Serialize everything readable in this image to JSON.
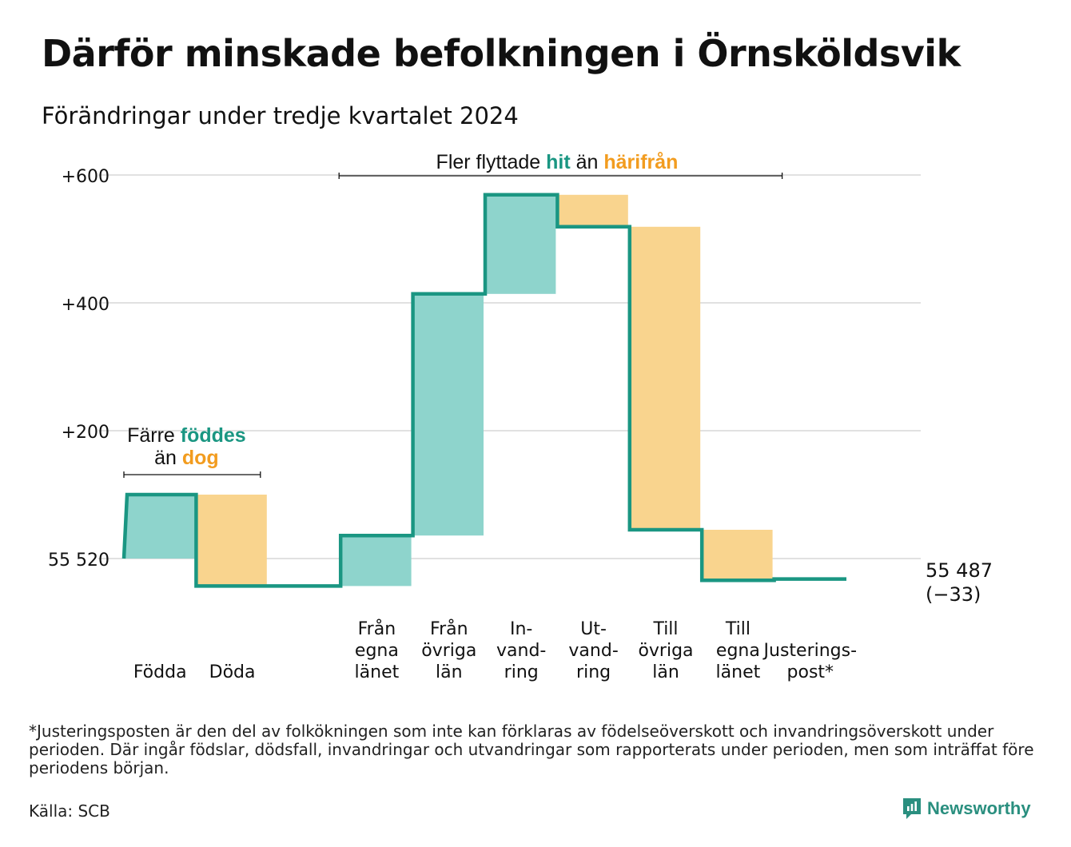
{
  "title": "Därför minskade befolkningen i Örnsköldsvik",
  "subtitle": "Förändringar under tredje kvartalet 2024",
  "colors": {
    "in": "#8ed4cc",
    "out": "#f9d48e",
    "line": "#1a9682",
    "in_text": "#1a9682",
    "out_text": "#f29c1f",
    "grid": "#e1e1e1"
  },
  "chart_data": {
    "type": "waterfall",
    "start_label": "55 520",
    "start_value": 55520,
    "y_ticks": [
      {
        "value": 600,
        "label": "+600"
      },
      {
        "value": 400,
        "label": "+400"
      },
      {
        "value": 200,
        "label": "+200"
      },
      {
        "value": 0,
        "label": "55 520"
      }
    ],
    "ylim": [
      -45,
      640
    ],
    "steps": [
      {
        "label": [
          "Födda"
        ],
        "change": 100,
        "kind": "in"
      },
      {
        "label": [
          "Döda"
        ],
        "change": -143,
        "kind": "out"
      },
      {
        "label": [],
        "change": 0,
        "kind": "none"
      },
      {
        "label": [
          "Från",
          "egna",
          "länet"
        ],
        "change": 79,
        "kind": "in"
      },
      {
        "label": [
          "Från",
          "övriga",
          "län"
        ],
        "change": 378,
        "kind": "in"
      },
      {
        "label": [
          "In-",
          "vand-",
          "ring"
        ],
        "change": 155,
        "kind": "in"
      },
      {
        "label": [
          "Ut-",
          "vand-",
          "ring"
        ],
        "change": -50,
        "kind": "out"
      },
      {
        "label": [
          "Till",
          "övriga",
          "län"
        ],
        "change": -474,
        "kind": "out"
      },
      {
        "label": [
          "Till",
          "egna",
          "länet"
        ],
        "change": -79,
        "kind": "out"
      },
      {
        "label": [
          "Justerings-",
          "post*"
        ],
        "change": 2,
        "kind": "adjust"
      }
    ],
    "end_label": "55 487",
    "end_change": "(−33)",
    "annotations": {
      "births": {
        "line1_prefix": "Färre ",
        "line1_highlight": "föddes",
        "line2_prefix": "än ",
        "line2_highlight": "dog"
      },
      "migration": {
        "prefix": "Fler flyttade ",
        "highlight_in": "hit",
        "middle": " än ",
        "highlight_out": "härifrån"
      }
    }
  },
  "footnote": "*Justeringsposten är den del av folkökningen som inte kan förklaras av födelseöverskott och invandringsöverskott under perioden. Där ingår födslar, dödsfall, invandringar och utvandringar som rapporterats under perioden, men som inträffat före periodens början.",
  "source": "Källa: SCB",
  "brand": {
    "name": "Newsworthy",
    "logo_icon": "newsworthy-logo-icon"
  }
}
